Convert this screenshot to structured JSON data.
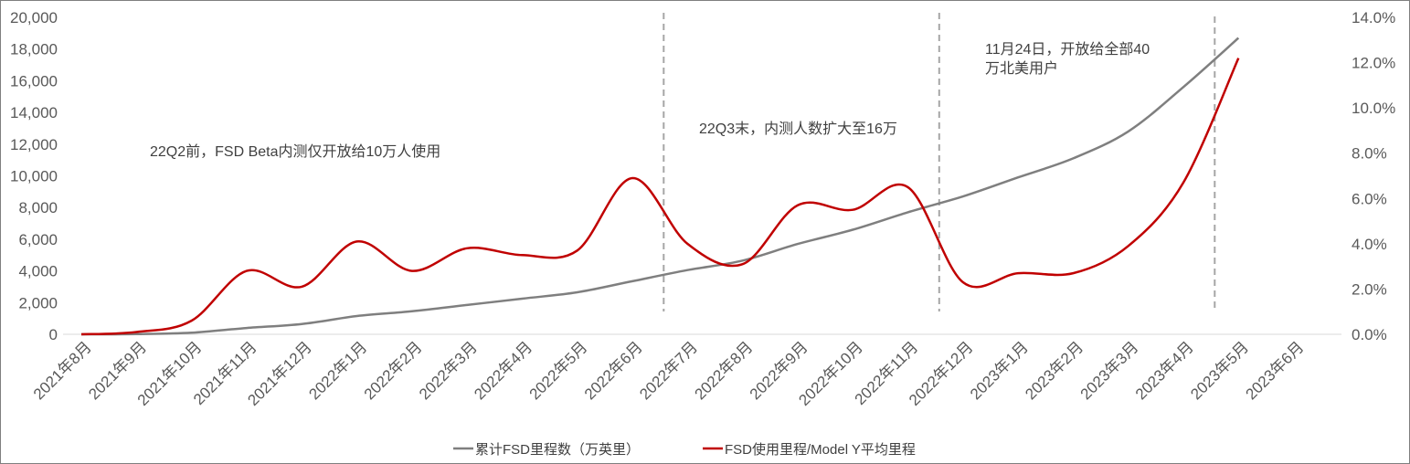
{
  "chart_data": {
    "type": "line",
    "categories": [
      "2021年8月",
      "2021年9月",
      "2021年10月",
      "2021年11月",
      "2021年12月",
      "2022年1月",
      "2022年2月",
      "2022年3月",
      "2022年4月",
      "2022年5月",
      "2022年6月",
      "2022年7月",
      "2022年8月",
      "2022年9月",
      "2022年10月",
      "2022年11月",
      "2022年12月",
      "2023年1月",
      "2023年2月",
      "2023年3月",
      "2023年4月",
      "2023年5月",
      "2023年6月"
    ],
    "left_axis": {
      "ylim": [
        0,
        20000
      ],
      "ticks": [
        0,
        2000,
        4000,
        6000,
        8000,
        10000,
        12000,
        14000,
        16000,
        18000,
        20000
      ],
      "tick_labels": [
        "0",
        "2,000",
        "4,000",
        "6,000",
        "8,000",
        "10,000",
        "12,000",
        "14,000",
        "16,000",
        "18,000",
        "20,000"
      ]
    },
    "right_axis": {
      "ylim": [
        0,
        14
      ],
      "ticks": [
        0,
        2,
        4,
        6,
        8,
        10,
        12,
        14
      ],
      "tick_labels": [
        "0.0%",
        "2.0%",
        "4.0%",
        "6.0%",
        "8.0%",
        "10.0%",
        "12.0%",
        "14.0%"
      ]
    },
    "series": [
      {
        "name": "累计FSD里程数（万英里）",
        "axis": "left",
        "color": "#7f7f7f",
        "x": [
          "2021年8月",
          "2021年9月",
          "2021年10月",
          "2021年11月",
          "2021年12月",
          "2022年1月",
          "2022年2月",
          "2022年3月",
          "2022年4月",
          "2022年5月",
          "2022年6月",
          "2022年7月",
          "2022年8月",
          "2022年9月",
          "2022年10月",
          "2022年11月",
          "2022年12月",
          "2023年1月",
          "2023年2月",
          "2023年3月",
          "2023年4月",
          "2023年5月"
        ],
        "values": [
          0,
          10,
          100,
          400,
          650,
          1150,
          1450,
          1850,
          2250,
          2650,
          3350,
          4050,
          4650,
          5700,
          6600,
          7700,
          8700,
          9900,
          11100,
          12800,
          15600,
          18700
        ]
      },
      {
        "name": "FSD使用里程/Model Y平均里程",
        "axis": "right",
        "color": "#c00000",
        "x": [
          "2021年8月",
          "2021年9月",
          "2021年10月",
          "2021年11月",
          "2021年12月",
          "2022年1月",
          "2022年2月",
          "2022年3月",
          "2022年4月",
          "2022年5月",
          "2022年6月",
          "2022年7月",
          "2022年8月",
          "2022年9月",
          "2022年10月",
          "2022年11月",
          "2022年12月",
          "2023年1月",
          "2023年2月",
          "2023年3月",
          "2023年4月",
          "2023年5月"
        ],
        "values": [
          0.0,
          0.1,
          0.6,
          2.8,
          2.1,
          4.1,
          2.8,
          3.8,
          3.5,
          3.7,
          6.9,
          4.0,
          3.1,
          5.7,
          5.5,
          6.5,
          2.3,
          2.7,
          2.7,
          3.9,
          6.7,
          12.2
        ]
      }
    ],
    "dividers": [
      "2022年7月",
      "2022年12月",
      "2023年5月"
    ],
    "annotations": [
      {
        "lines": [
          "22Q2前，FSD Beta内测仅开放给10万人使用"
        ]
      },
      {
        "lines": [
          "22Q3末，内测人数扩大至16万"
        ]
      },
      {
        "lines": [
          "11月24日，开放给全部40",
          "万北美用户"
        ]
      }
    ],
    "legend": {
      "position": "bottom",
      "items": [
        "累计FSD里程数（万英里）",
        "FSD使用里程/Model Y平均里程"
      ]
    }
  }
}
